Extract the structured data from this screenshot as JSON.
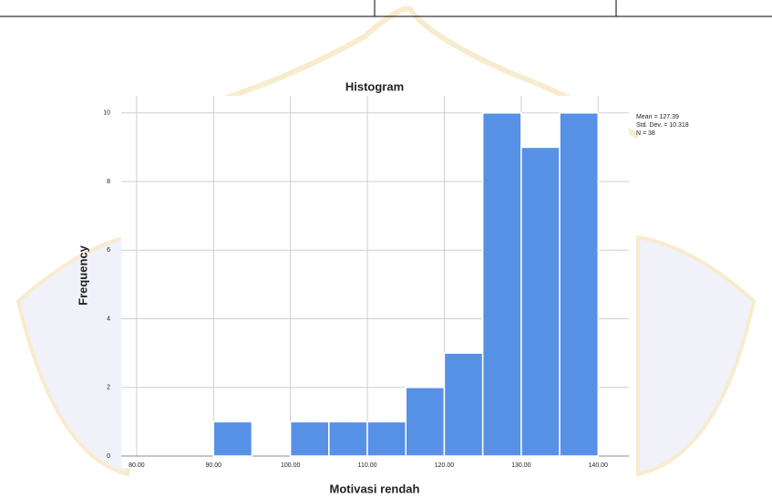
{
  "chart_data": {
    "type": "histogram",
    "title": "Histogram",
    "x_label": "Motivasi rendah",
    "y_label": "Frequency",
    "bins": [
      90,
      95,
      100,
      105,
      110,
      115,
      120,
      125,
      130,
      135,
      140
    ],
    "values": [
      1,
      0,
      1,
      1,
      1,
      2,
      3,
      10,
      9,
      10
    ],
    "color": "#5791e6",
    "xlim": [
      78,
      144
    ],
    "xticks": [
      {
        "value": 80,
        "label": "80.00"
      },
      {
        "value": 90,
        "label": "90.00"
      },
      {
        "value": 100,
        "label": "100.00"
      },
      {
        "value": 110,
        "label": "110.00"
      },
      {
        "value": 120,
        "label": "120.00"
      },
      {
        "value": 130,
        "label": "130.00"
      },
      {
        "value": 140,
        "label": "140.00"
      }
    ],
    "ylim": [
      0,
      10.5
    ],
    "yticks": [
      0,
      2,
      4,
      6,
      8,
      10
    ],
    "grid": true,
    "annotations": [
      "Mean = 127.39",
      "Std. Dev. = 10.318",
      "N = 38"
    ]
  }
}
